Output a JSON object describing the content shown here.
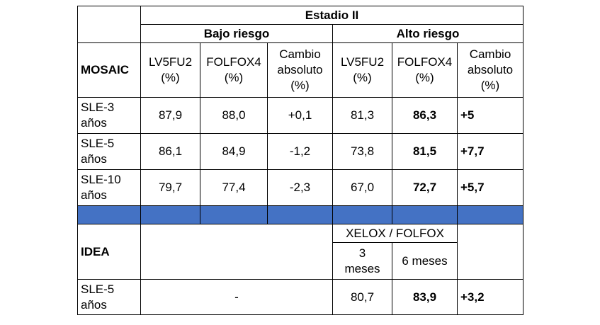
{
  "header": {
    "stage": "Estadio II",
    "low_risk": "Bajo riesgo",
    "high_risk": "Alto riesgo"
  },
  "mosaic": {
    "label": "MOSAIC",
    "columns": {
      "lv5fu2": [
        "LV5FU2",
        "(%)"
      ],
      "folfox4": [
        "FOLFOX4",
        "(%)"
      ],
      "change": [
        "Cambio",
        "absoluto",
        "(%)"
      ]
    },
    "rows": [
      {
        "label": [
          "SLE-3",
          "años"
        ],
        "low": [
          "87,9",
          "88,0",
          "+0,1"
        ],
        "high": [
          "81,3",
          "86,3",
          "+5"
        ]
      },
      {
        "label": [
          "SLE-5",
          "años"
        ],
        "low": [
          "86,1",
          "84,9",
          "-1,2"
        ],
        "high": [
          "73,8",
          "81,5",
          "+7,7"
        ]
      },
      {
        "label": [
          "SLE-10",
          "años"
        ],
        "low": [
          "79,7",
          "77,4",
          "-2,3"
        ],
        "high": [
          "67,0",
          "72,7",
          "+5,7"
        ]
      }
    ]
  },
  "idea": {
    "label": "IDEA",
    "regimen": "XELOX / FOLFOX",
    "duration_3": [
      "3",
      "meses"
    ],
    "duration_6": "6 meses",
    "row": {
      "label": [
        "SLE-5",
        "años"
      ],
      "low": "-",
      "high": [
        "80,7",
        "83,9",
        "+3,2"
      ]
    }
  },
  "colors": {
    "separator_row": "#4472c4",
    "border": "#000000"
  }
}
